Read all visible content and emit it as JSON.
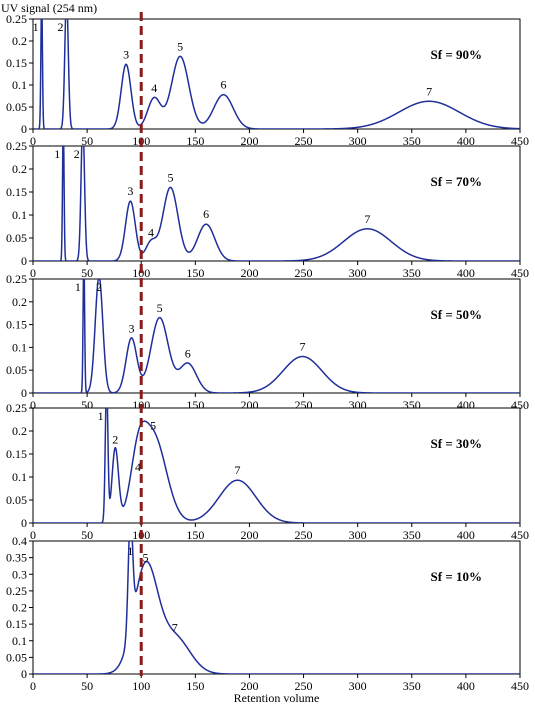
{
  "figure": {
    "y_signal_label": "UV signal (254 nm)",
    "x_label": "Retention volume",
    "reference_line_x": 100,
    "line_color": "#1f2f9a",
    "reference_line_color": "#8b1a1a"
  },
  "chart_data": [
    {
      "type": "line",
      "sf_label": "Sf = 90%",
      "xlim": [
        0,
        450
      ],
      "ylim": [
        0,
        0.25
      ],
      "xticks": [
        "0",
        "50",
        "100",
        "150",
        "200",
        "250",
        "300",
        "350",
        "400",
        "450"
      ],
      "yticks": [
        "0",
        "0.05",
        "0.1",
        "0.15",
        "0.2",
        "0.25"
      ],
      "peaks": [
        {
          "label": "1",
          "x": 8,
          "y": 0.3,
          "w": 0.7
        },
        {
          "label": "2",
          "x": 31,
          "y": 0.3,
          "w": 1.6
        },
        {
          "label": "3",
          "x": 86,
          "y": 0.147,
          "w": 4.5
        },
        {
          "label": "4",
          "x": 112,
          "y": 0.07,
          "w": 6
        },
        {
          "label": "5",
          "x": 136,
          "y": 0.165,
          "w": 8
        },
        {
          "label": "6",
          "x": 176,
          "y": 0.078,
          "w": 9
        },
        {
          "label": "7",
          "x": 366,
          "y": 0.063,
          "w": 28
        }
      ]
    },
    {
      "type": "line",
      "sf_label": "Sf = 70%",
      "xlim": [
        0,
        450
      ],
      "ylim": [
        0,
        0.25
      ],
      "xticks": [
        "0",
        "50",
        "100",
        "150",
        "200",
        "250",
        "300",
        "350",
        "400",
        "450"
      ],
      "yticks": [
        "0",
        "0.05",
        "0.1",
        "0.15",
        "0.2",
        "0.25"
      ],
      "peaks": [
        {
          "label": "1",
          "x": 28,
          "y": 0.3,
          "w": 0.7
        },
        {
          "label": "2",
          "x": 46,
          "y": 0.3,
          "w": 1.6
        },
        {
          "label": "3",
          "x": 90,
          "y": 0.13,
          "w": 4.5
        },
        {
          "label": "4",
          "x": 109,
          "y": 0.04,
          "w": 5
        },
        {
          "label": "5",
          "x": 127,
          "y": 0.16,
          "w": 7
        },
        {
          "label": "6",
          "x": 160,
          "y": 0.08,
          "w": 8
        },
        {
          "label": "7",
          "x": 309,
          "y": 0.07,
          "w": 22
        }
      ]
    },
    {
      "type": "line",
      "sf_label": "Sf = 50%",
      "xlim": [
        0,
        450
      ],
      "ylim": [
        0,
        0.25
      ],
      "xticks": [
        "0",
        "50",
        "100",
        "150",
        "200",
        "250",
        "300",
        "350",
        "400",
        "450"
      ],
      "yticks": [
        "0",
        "0.05",
        "0.1",
        "0.15",
        "0.2",
        "0.25"
      ],
      "peaks": [
        {
          "label": "1",
          "x": 47,
          "y": 0.3,
          "w": 0.7
        },
        {
          "label": "2",
          "x": 61,
          "y": 0.255,
          "w": 3.5
        },
        {
          "label": "3",
          "x": 91,
          "y": 0.12,
          "w": 5
        },
        {
          "label": "5",
          "x": 117,
          "y": 0.165,
          "w": 8
        },
        {
          "label": "6",
          "x": 143,
          "y": 0.065,
          "w": 8
        },
        {
          "label": "7",
          "x": 249,
          "y": 0.08,
          "w": 18
        }
      ]
    },
    {
      "type": "line",
      "sf_label": "Sf = 30%",
      "xlim": [
        0,
        450
      ],
      "ylim": [
        0,
        0.25
      ],
      "xticks": [
        "0",
        "50",
        "100",
        "150",
        "200",
        "250",
        "300",
        "350",
        "400",
        "450"
      ],
      "yticks": [
        "0",
        "0.05",
        "0.1",
        "0.15",
        "0.2",
        "0.25"
      ],
      "peaks": [
        {
          "label": "1",
          "x": 68,
          "y": 0.3,
          "w": 1.2
        },
        {
          "label": "2",
          "x": 76,
          "y": 0.16,
          "w": 3
        },
        {
          "label": "4",
          "x": 97,
          "y": 0.1,
          "w": 7
        },
        {
          "label": "5",
          "x": 111,
          "y": 0.19,
          "w": 12
        },
        {
          "label": "7",
          "x": 189,
          "y": 0.093,
          "w": 17
        }
      ]
    },
    {
      "type": "line",
      "sf_label": "Sf = 10%",
      "xlim": [
        0,
        450
      ],
      "ylim": [
        0,
        0.4
      ],
      "xticks": [
        "0",
        "50",
        "100",
        "150",
        "200",
        "250",
        "300",
        "350",
        "400",
        "450"
      ],
      "yticks": [
        "0",
        "0.05",
        "0.1",
        "0.15",
        "0.2",
        "0.25",
        "0.3",
        "0.35",
        "0.4"
      ],
      "peaks": [
        {
          "label": "1",
          "x": 90,
          "y": 0.34,
          "w": 2
        },
        {
          "label": "5",
          "x": 104,
          "y": 0.32,
          "w": 11
        },
        {
          "label": "7",
          "x": 131,
          "y": 0.11,
          "w": 14
        }
      ]
    }
  ]
}
